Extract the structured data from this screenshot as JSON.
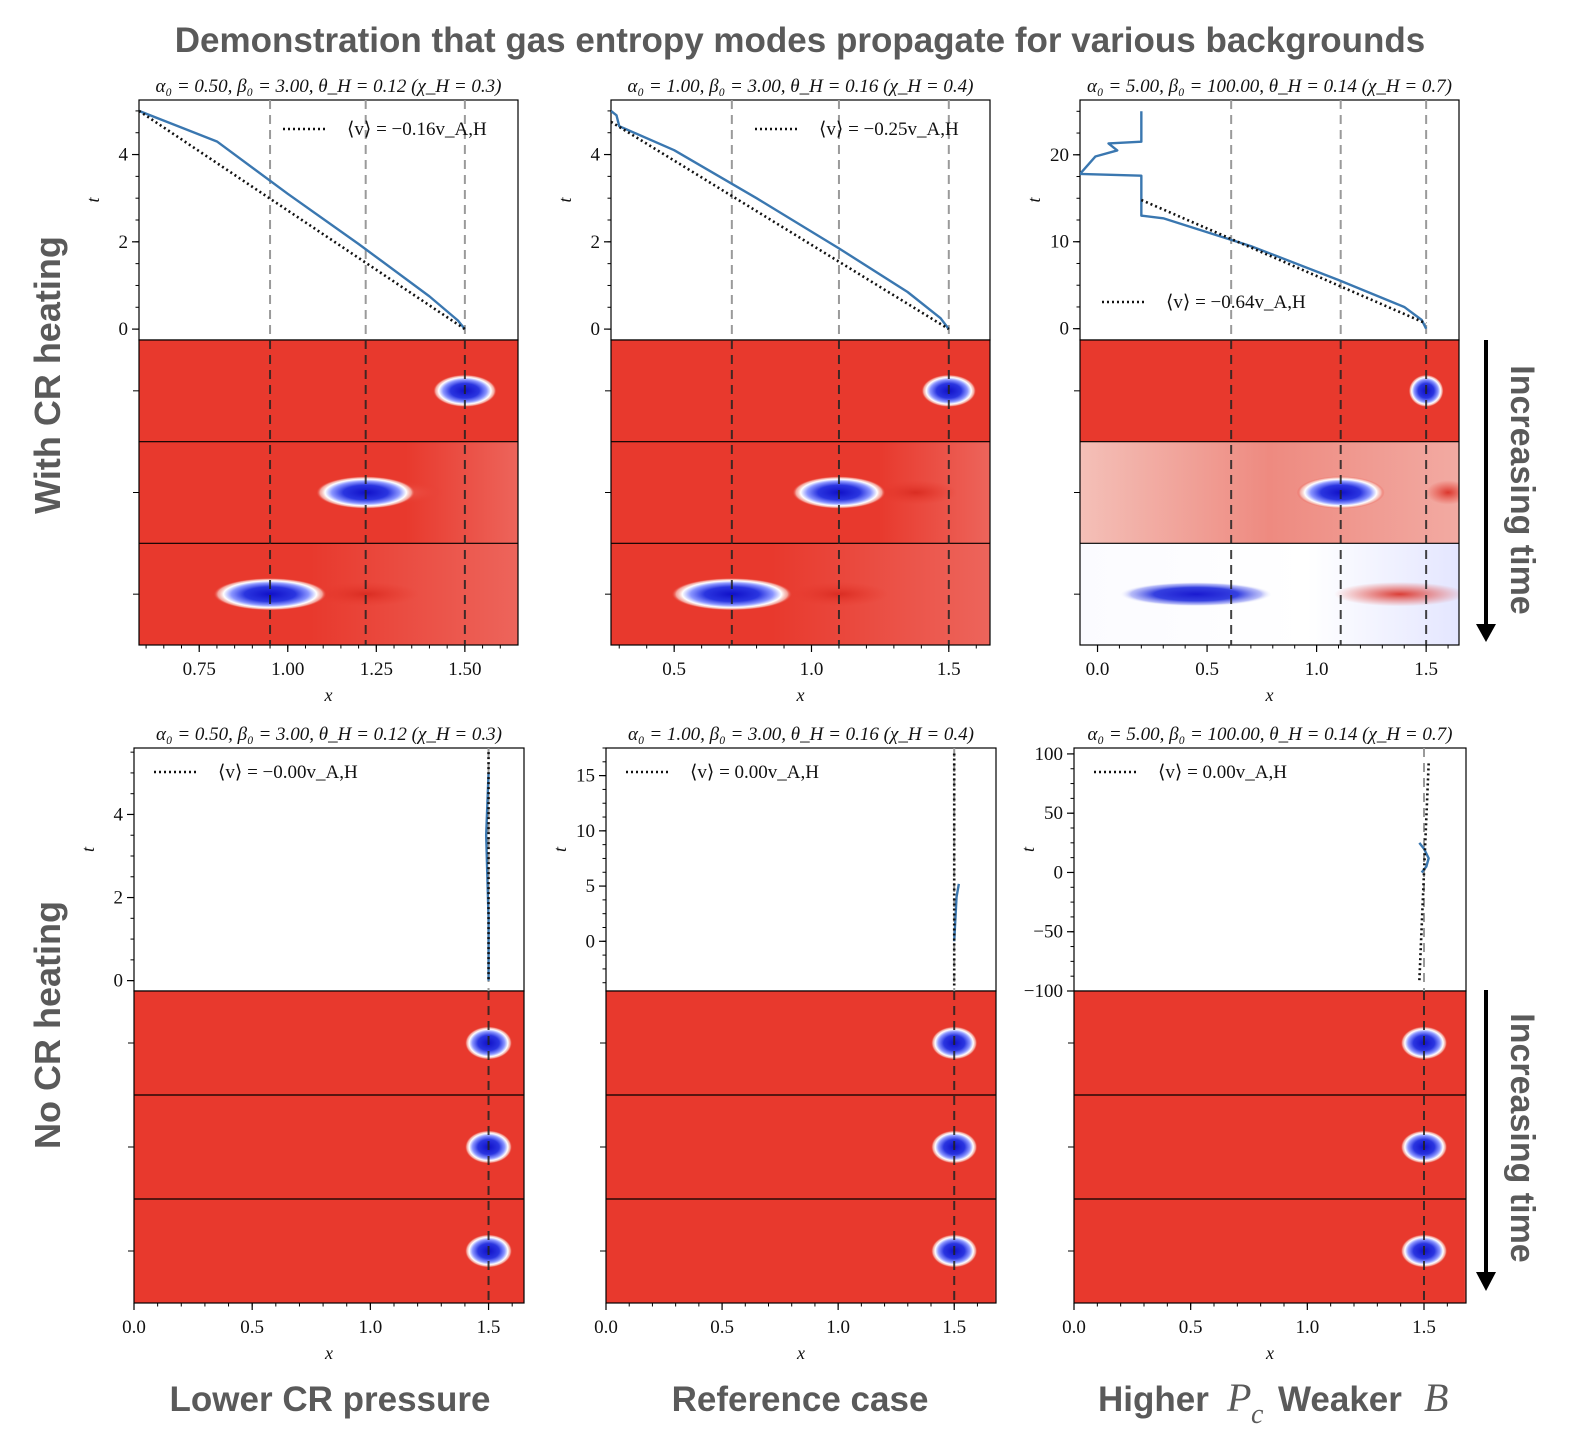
{
  "figure_title": "Demonstration that gas entropy modes propagate for various backgrounds",
  "row_labels": {
    "top": "With CR heating",
    "bottom": "No CR heating"
  },
  "time_arrow_label": "Increasing time",
  "column_labels": [
    "Lower CR pressure",
    "Reference case",
    "Higher",
    "Weaker"
  ],
  "column_math": {
    "pc_main": "P",
    "pc_sub": "c",
    "b": "B"
  },
  "colors": {
    "sim": "#3a77b0",
    "fit": "#111111",
    "red": "#e8392d",
    "blue": "#1c1cd0",
    "guide": "#9a9a9a"
  },
  "chart_data": [
    {
      "panel": "top-left",
      "type": "line",
      "title": "α₀ = 0.50, β₀ = 3.00, θ_H = 0.12 (χ_H = 0.3)",
      "xlabel": "x",
      "ylabel": "t",
      "xlim": [
        0.58,
        1.65
      ],
      "ylim": [
        -0.25,
        5.25
      ],
      "xticks": [
        0.75,
        1.0,
        1.25,
        1.5
      ],
      "xticklabels": [
        "0.75",
        "1.00",
        "1.25",
        "1.50"
      ],
      "yticks": [
        0,
        2,
        4
      ],
      "yticklabels": [
        "0",
        "2",
        "4"
      ],
      "legend": "⟨v⟩ = −0.16v_A,H",
      "legend_position": "top-right",
      "series": [
        {
          "name": "simulation",
          "style": "solid",
          "x": [
            0.58,
            0.8,
            1.0,
            1.2,
            1.4,
            1.48,
            1.5
          ],
          "t": [
            5.0,
            4.3,
            3.1,
            1.95,
            0.75,
            0.2,
            0.0
          ]
        },
        {
          "name": "fit",
          "style": "dotted",
          "x": [
            0.58,
            1.5
          ],
          "t": [
            5.0,
            0.0
          ]
        }
      ],
      "guide_lines_x": [
        0.95,
        1.22,
        1.5
      ],
      "snapshots": [
        {
          "blob_x": 1.5,
          "blob_half_width": 0.09,
          "tail": [],
          "background": "#e8392d"
        },
        {
          "blob_x": 1.22,
          "blob_half_width": 0.14,
          "tail": [
            {
              "x": 1.32,
              "w": 0.12,
              "tone": "red-light"
            }
          ],
          "background": "#e8392d"
        },
        {
          "blob_x": 0.95,
          "blob_half_width": 0.16,
          "tail": [
            {
              "x": 1.22,
              "w": 0.15,
              "tone": "red-dark"
            }
          ],
          "background": "#e8392d"
        }
      ]
    },
    {
      "panel": "top-middle",
      "type": "line",
      "title": "α₀ = 1.00, β₀ = 3.00, θ_H = 0.16 (χ_H = 0.4)",
      "xlabel": "x",
      "ylabel": "t",
      "xlim": [
        0.27,
        1.65
      ],
      "ylim": [
        -0.25,
        5.25
      ],
      "xticks": [
        0.5,
        1.0,
        1.5
      ],
      "xticklabels": [
        "0.5",
        "1.0",
        "1.5"
      ],
      "yticks": [
        0,
        2,
        4
      ],
      "yticklabels": [
        "0",
        "2",
        "4"
      ],
      "legend": "⟨v⟩ = −0.25v_A,H",
      "legend_position": "top-right",
      "series": [
        {
          "name": "simulation",
          "style": "solid",
          "x": [
            0.27,
            0.29,
            0.3,
            0.5,
            0.8,
            1.1,
            1.35,
            1.47,
            1.5
          ],
          "t": [
            5.0,
            4.9,
            4.65,
            4.1,
            3.0,
            1.85,
            0.85,
            0.25,
            0.0
          ]
        },
        {
          "name": "fit",
          "style": "dotted",
          "x": [
            0.27,
            1.5
          ],
          "t": [
            4.75,
            0.0
          ]
        }
      ],
      "guide_lines_x": [
        0.71,
        1.1,
        1.5
      ],
      "snapshots": [
        {
          "blob_x": 1.5,
          "blob_half_width": 0.1,
          "tail": [],
          "background": "#e8392d"
        },
        {
          "blob_x": 1.1,
          "blob_half_width": 0.17,
          "tail": [
            {
              "x": 1.38,
              "w": 0.15,
              "tone": "red-dark"
            }
          ],
          "background": "#e8392d"
        },
        {
          "blob_x": 0.71,
          "blob_half_width": 0.22,
          "tail": [
            {
              "x": 1.1,
              "w": 0.18,
              "tone": "red-dark"
            }
          ],
          "background": "#e8392d"
        }
      ]
    },
    {
      "panel": "top-right",
      "type": "line",
      "title": "α₀ = 5.00, β₀ = 100.00, θ_H = 0.14 (χ_H = 0.7)",
      "xlabel": "x",
      "ylabel": "t",
      "xlim": [
        -0.08,
        1.65
      ],
      "ylim": [
        -1.3,
        26.3
      ],
      "xticks": [
        0.0,
        0.5,
        1.0,
        1.5
      ],
      "xticklabels": [
        "0.0",
        "0.5",
        "1.0",
        "1.5"
      ],
      "yticks": [
        0,
        10,
        20
      ],
      "yticklabels": [
        "0",
        "10",
        "20"
      ],
      "legend": "⟨v⟩ = −0.64v_A,H",
      "legend_position": "bottom-left",
      "series": [
        {
          "name": "simulation",
          "style": "solid",
          "x": [
            0.2,
            0.2,
            0.05,
            0.09,
            -0.01,
            -0.08,
            0.2,
            0.2,
            0.3,
            0.7,
            1.1,
            1.4,
            1.48,
            1.5
          ],
          "t": [
            25,
            21.5,
            21.3,
            20.5,
            19.8,
            17.8,
            17.6,
            13.0,
            12.7,
            9.5,
            5.6,
            2.5,
            1.0,
            0.0
          ]
        },
        {
          "name": "fit",
          "style": "dotted",
          "x": [
            0.2,
            1.5
          ],
          "t": [
            14.8,
            0.6
          ]
        }
      ],
      "guide_lines_x": [
        0.61,
        1.11,
        1.5
      ],
      "snapshots": [
        {
          "blob_x": 1.5,
          "blob_half_width": 0.08,
          "tail": [],
          "background": "#e8392d"
        },
        {
          "blob_x": 1.11,
          "blob_half_width": 0.2,
          "tail": [
            {
              "x": 1.6,
              "w": 0.1,
              "tone": "red-dark"
            }
          ],
          "background": "#f0a8a0"
        },
        {
          "blob_x": 0.45,
          "blob_half_width": 0.35,
          "tail": [
            {
              "x": 1.38,
              "w": 0.3,
              "tone": "red-dark"
            }
          ],
          "background": "#f4f4ff"
        }
      ]
    },
    {
      "panel": "bottom-left",
      "type": "line",
      "title": "α₀ = 0.50, β₀ = 3.00, θ_H = 0.12 (χ_H = 0.3)",
      "xlabel": "x",
      "ylabel": "t",
      "xlim": [
        0.0,
        1.65
      ],
      "ylim": [
        -0.25,
        5.6
      ],
      "xticks": [
        0.0,
        0.5,
        1.0,
        1.5
      ],
      "xticklabels": [
        "0.0",
        "0.5",
        "1.0",
        "1.5"
      ],
      "yticks": [
        0,
        2,
        4
      ],
      "yticklabels": [
        "0",
        "2",
        "4"
      ],
      "legend": "⟨v⟩ = −0.00v_A,H",
      "legend_position": "top-left",
      "series": [
        {
          "name": "simulation",
          "style": "solid",
          "x": [
            1.5,
            1.49,
            1.5,
            1.5
          ],
          "t": [
            5.0,
            3.5,
            1.5,
            0.0
          ]
        },
        {
          "name": "fit",
          "style": "dotted",
          "x": [
            1.5,
            1.5
          ],
          "t": [
            5.5,
            0.0
          ]
        }
      ],
      "guide_lines_x": [
        1.5
      ],
      "snapshots": [
        {
          "blob_x": 1.5,
          "blob_half_width": 0.1,
          "tail": [],
          "background": "#e8392d"
        },
        {
          "blob_x": 1.5,
          "blob_half_width": 0.1,
          "tail": [],
          "background": "#e8392d"
        },
        {
          "blob_x": 1.5,
          "blob_half_width": 0.1,
          "tail": [],
          "background": "#e8392d"
        }
      ]
    },
    {
      "panel": "bottom-middle",
      "type": "line",
      "title": "α₀ = 1.00, β₀ = 3.00, θ_H = 0.16 (χ_H = 0.4)",
      "xlabel": "x",
      "ylabel": "t",
      "xlim": [
        0.0,
        1.68
      ],
      "ylim": [
        -4.5,
        17.5
      ],
      "xticks": [
        0.0,
        0.5,
        1.0,
        1.5
      ],
      "xticklabels": [
        "0.0",
        "0.5",
        "1.0",
        "1.5"
      ],
      "yticks": [
        0,
        5,
        10,
        15
      ],
      "yticklabels": [
        "0",
        "5",
        "10",
        "15"
      ],
      "legend": "⟨v⟩ = 0.00v_A,H",
      "legend_position": "top-left",
      "series": [
        {
          "name": "simulation",
          "style": "solid",
          "x": [
            1.5,
            1.51,
            1.52
          ],
          "t": [
            0.0,
            4.0,
            5.2
          ]
        },
        {
          "name": "fit",
          "style": "dotted",
          "x": [
            1.5,
            1.5
          ],
          "t": [
            17.0,
            -4.0
          ]
        }
      ],
      "guide_lines_x": [
        1.5
      ],
      "snapshots": [
        {
          "blob_x": 1.5,
          "blob_half_width": 0.1,
          "tail": [],
          "background": "#e8392d"
        },
        {
          "blob_x": 1.5,
          "blob_half_width": 0.1,
          "tail": [],
          "background": "#e8392d"
        },
        {
          "blob_x": 1.5,
          "blob_half_width": 0.1,
          "tail": [],
          "background": "#e8392d"
        }
      ]
    },
    {
      "panel": "bottom-right",
      "type": "line",
      "title": "α₀ = 5.00, β₀ = 100.00, θ_H = 0.14 (χ_H = 0.7)",
      "xlabel": "x",
      "ylabel": "t",
      "xlim": [
        0.0,
        1.68
      ],
      "ylim": [
        -100,
        105
      ],
      "xticks": [
        0.0,
        0.5,
        1.0,
        1.5
      ],
      "xticklabels": [
        "0.0",
        "0.5",
        "1.0",
        "1.5"
      ],
      "yticks": [
        -100,
        -50,
        0,
        50,
        100
      ],
      "yticklabels": [
        "−100",
        "−50",
        "0",
        "50",
        "100"
      ],
      "legend": "⟨v⟩ = 0.00v_A,H",
      "legend_position": "top-left",
      "series": [
        {
          "name": "simulation",
          "style": "solid",
          "x": [
            1.48,
            1.5,
            1.52,
            1.51,
            1.49
          ],
          "t": [
            25,
            20,
            12,
            5,
            0
          ]
        },
        {
          "name": "fit",
          "style": "dotted",
          "x": [
            1.52,
            1.48
          ],
          "t": [
            92,
            -92
          ]
        }
      ],
      "guide_lines_x": [
        1.5
      ],
      "snapshots": [
        {
          "blob_x": 1.5,
          "blob_half_width": 0.1,
          "tail": [],
          "background": "#e8392d"
        },
        {
          "blob_x": 1.5,
          "blob_half_width": 0.1,
          "tail": [],
          "background": "#e8392d"
        },
        {
          "blob_x": 1.5,
          "blob_half_width": 0.1,
          "tail": [],
          "background": "#e8392d"
        }
      ]
    }
  ]
}
